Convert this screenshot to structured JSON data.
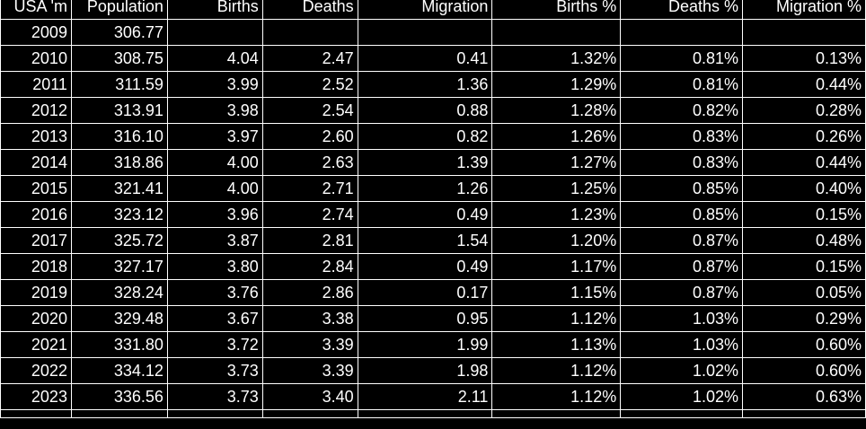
{
  "table": {
    "headers": [
      "USA 'm",
      "Population",
      "Births",
      "Deaths",
      "Migration",
      "Births %",
      "Deaths %",
      "Migration %"
    ],
    "rows": [
      [
        "2009",
        "306.77",
        "",
        "",
        "",
        "",
        "",
        ""
      ],
      [
        "2010",
        "308.75",
        "4.04",
        "2.47",
        "0.41",
        "1.32%",
        "0.81%",
        "0.13%"
      ],
      [
        "2011",
        "311.59",
        "3.99",
        "2.52",
        "1.36",
        "1.29%",
        "0.81%",
        "0.44%"
      ],
      [
        "2012",
        "313.91",
        "3.98",
        "2.54",
        "0.88",
        "1.28%",
        "0.82%",
        "0.28%"
      ],
      [
        "2013",
        "316.10",
        "3.97",
        "2.60",
        "0.82",
        "1.26%",
        "0.83%",
        "0.26%"
      ],
      [
        "2014",
        "318.86",
        "4.00",
        "2.63",
        "1.39",
        "1.27%",
        "0.83%",
        "0.44%"
      ],
      [
        "2015",
        "321.41",
        "4.00",
        "2.71",
        "1.26",
        "1.25%",
        "0.85%",
        "0.40%"
      ],
      [
        "2016",
        "323.12",
        "3.96",
        "2.74",
        "0.49",
        "1.23%",
        "0.85%",
        "0.15%"
      ],
      [
        "2017",
        "325.72",
        "3.87",
        "2.81",
        "1.54",
        "1.20%",
        "0.87%",
        "0.48%"
      ],
      [
        "2018",
        "327.17",
        "3.80",
        "2.84",
        "0.49",
        "1.17%",
        "0.87%",
        "0.15%"
      ],
      [
        "2019",
        "328.24",
        "3.76",
        "2.86",
        "0.17",
        "1.15%",
        "0.87%",
        "0.05%"
      ],
      [
        "2020",
        "329.48",
        "3.67",
        "3.38",
        "0.95",
        "1.12%",
        "1.03%",
        "0.29%"
      ],
      [
        "2021",
        "331.80",
        "3.72",
        "3.39",
        "1.99",
        "1.13%",
        "1.03%",
        "0.60%"
      ],
      [
        "2022",
        "334.12",
        "3.73",
        "3.39",
        "1.98",
        "1.12%",
        "1.02%",
        "0.60%"
      ],
      [
        "2023",
        "336.56",
        "3.73",
        "3.40",
        "2.11",
        "1.12%",
        "1.02%",
        "0.63%"
      ]
    ]
  },
  "colors": {
    "background": "#000000",
    "text": "#ffffff",
    "gridlines": "#ffffff"
  }
}
